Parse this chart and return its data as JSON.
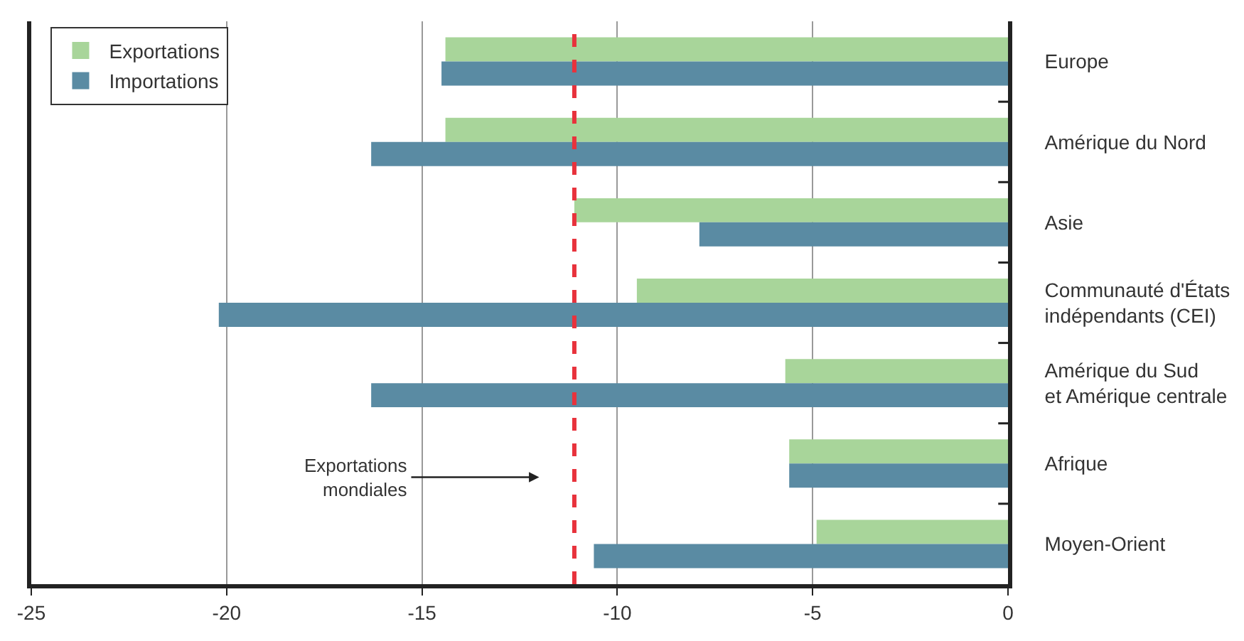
{
  "chart_data": {
    "type": "bar",
    "orientation": "horizontal",
    "categories": [
      "Europe",
      "Amérique du Nord",
      "Asie",
      "Communauté d'États\nindépendants (CEI)",
      "Amérique du Sud\net Amérique centrale",
      "Afrique",
      "Moyen-Orient"
    ],
    "series": [
      {
        "name": "Exportations",
        "color": "#a8d59a",
        "values": [
          -14.4,
          -14.4,
          -11.1,
          -9.5,
          -5.7,
          -5.6,
          -4.9
        ]
      },
      {
        "name": "Importations",
        "color": "#5a8ba3",
        "values": [
          -14.5,
          -16.3,
          -7.9,
          -20.2,
          -16.3,
          -5.6,
          -10.6
        ]
      }
    ],
    "xlim": [
      -25,
      0
    ],
    "xticks": [
      -25,
      -20,
      -15,
      -10,
      -5,
      0
    ],
    "ref_lines": [
      {
        "axis": "x",
        "value": -11.1,
        "color": "#e8323c",
        "line_style": "dashed"
      }
    ],
    "annotations": [
      "Exportations\nmondiales"
    ],
    "grid": "x",
    "legend": "top left"
  }
}
